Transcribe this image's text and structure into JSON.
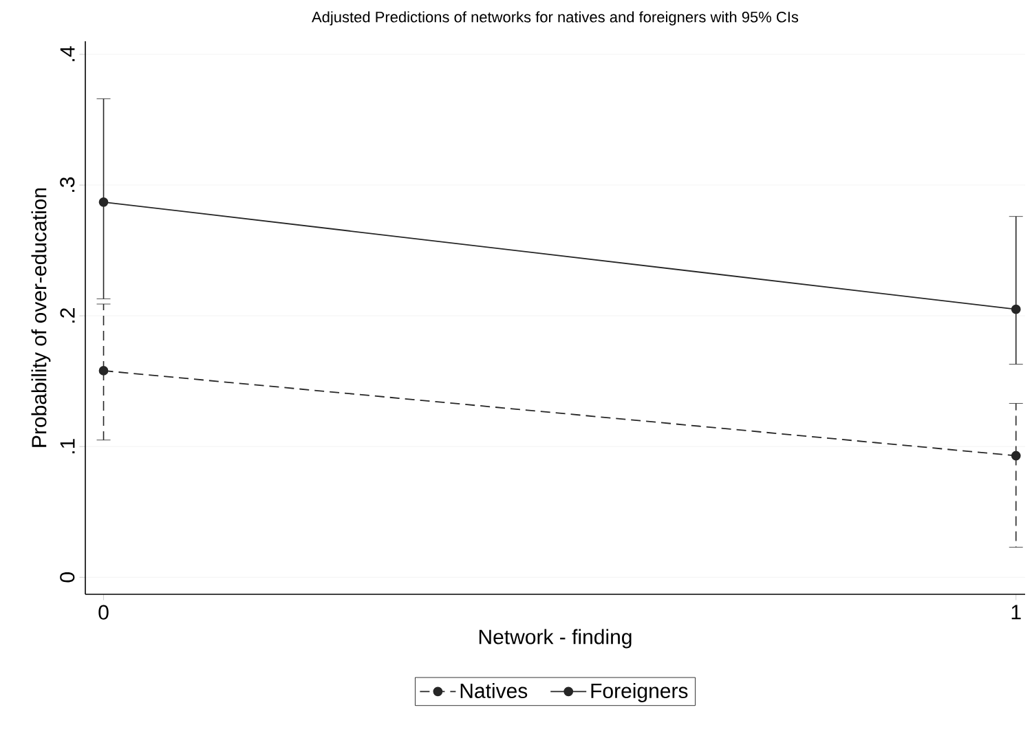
{
  "chart_data": {
    "type": "line",
    "title": "Adjusted Predictions of networks for natives and foreigners with 95% CIs",
    "xlabel": "Network - finding",
    "ylabel": "Probability of over-education",
    "x": [
      0,
      1
    ],
    "xlim": [
      -0.02,
      1.01
    ],
    "xticks": [
      0,
      1
    ],
    "ylim": [
      -0.013,
      0.41
    ],
    "yticks": [
      {
        "value": 0,
        "label": "0"
      },
      {
        "value": 0.1,
        "label": ".1"
      },
      {
        "value": 0.2,
        "label": ".2"
      },
      {
        "value": 0.3,
        "label": ".3"
      },
      {
        "value": 0.4,
        "label": ".4"
      }
    ],
    "series": [
      {
        "name": "Natives",
        "color": "#262626",
        "line_style": "dashed",
        "values": [
          0.158,
          0.093
        ],
        "errors": [
          [
            0.105,
            0.209
          ],
          [
            0.023,
            0.133
          ]
        ]
      },
      {
        "name": "Foreigners",
        "color": "#262626",
        "line_style": "solid",
        "values": [
          0.287,
          0.205
        ],
        "errors": [
          [
            0.213,
            0.366
          ],
          [
            0.163,
            0.276
          ]
        ]
      }
    ],
    "grid": "y",
    "legend": "bottom",
    "marker": "circle"
  }
}
